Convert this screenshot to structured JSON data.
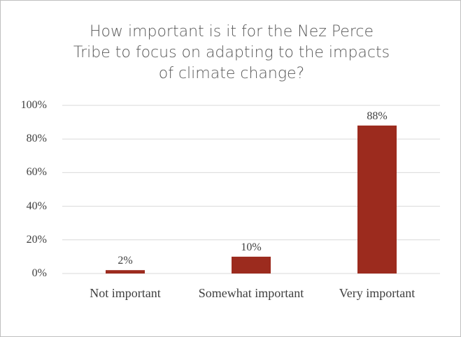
{
  "chart_data": {
    "type": "bar",
    "title": "How important is it for the Nez Perce Tribe to focus on adapting to the impacts of climate change?",
    "categories": [
      "Not important",
      "Somewhat important",
      "Very important"
    ],
    "values": [
      2,
      10,
      88
    ],
    "value_labels": [
      "2%",
      "10%",
      "88%"
    ],
    "color": "#9c2b1e",
    "ylim": [
      0,
      100
    ],
    "yticks": [
      {
        "value": 0,
        "label": "0%"
      },
      {
        "value": 20,
        "label": "20%"
      },
      {
        "value": 40,
        "label": "40%"
      },
      {
        "value": 60,
        "label": "60%"
      },
      {
        "value": 80,
        "label": "80%"
      },
      {
        "value": 100,
        "label": "100%"
      }
    ],
    "grid": true
  }
}
